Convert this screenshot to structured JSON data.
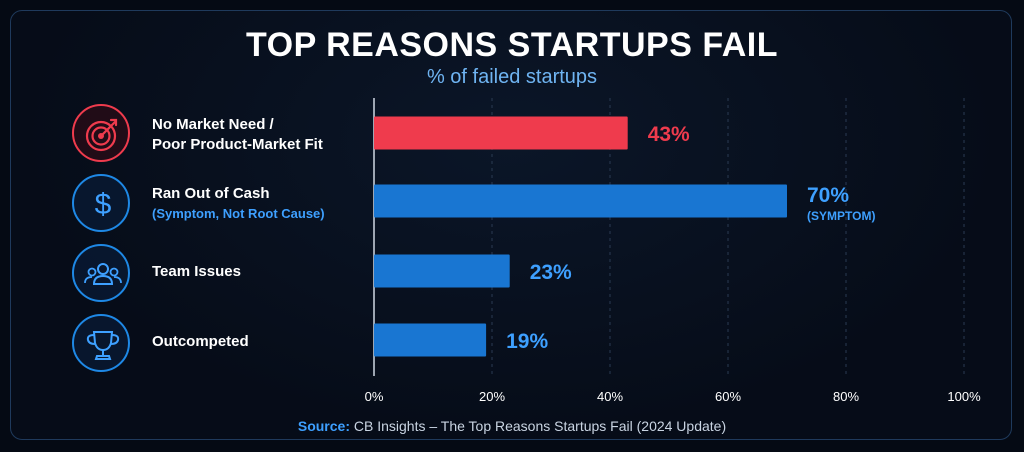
{
  "title": "TOP REASONS STARTUPS FAIL",
  "subtitle": "% of failed startups",
  "source_key": "Source:",
  "source_text": " CB Insights – The Top Reasons Startups Fail (2024 Update)",
  "icons": [
    "target-icon",
    "dollar-icon",
    "team-icon",
    "trophy-icon"
  ],
  "colors": {
    "highlight": "#ef3b4d",
    "bar": "#1976d2",
    "accent": "#3ea0ff"
  },
  "chart_data": {
    "type": "bar",
    "orientation": "horizontal",
    "categories": [
      {
        "line1": "No Market Need /",
        "line2": "Poor Product-Market Fit",
        "note": ""
      },
      {
        "line1": "Ran Out of Cash",
        "line2": "",
        "note": "(Symptom, Not Root Cause)"
      },
      {
        "line1": "Team Issues",
        "line2": "",
        "note": ""
      },
      {
        "line1": "Outcompeted",
        "line2": "",
        "note": ""
      }
    ],
    "values": [
      43,
      70,
      23,
      19
    ],
    "value_labels": [
      "43%",
      "70%",
      "23%",
      "19%"
    ],
    "value_notes": [
      "",
      "(SYMPTOM)",
      "",
      ""
    ],
    "bar_colors": [
      "#ef3b4d",
      "#1976d2",
      "#1976d2",
      "#1976d2"
    ],
    "label_colors": [
      "#ef3b4d",
      "#3ea0ff",
      "#3ea0ff",
      "#3ea0ff"
    ],
    "xlim": [
      0,
      100
    ],
    "xticks": [
      0,
      20,
      40,
      60,
      80,
      100
    ],
    "xtick_labels": [
      "0%",
      "20%",
      "40%",
      "60%",
      "80%",
      "100%"
    ],
    "grid": true
  }
}
